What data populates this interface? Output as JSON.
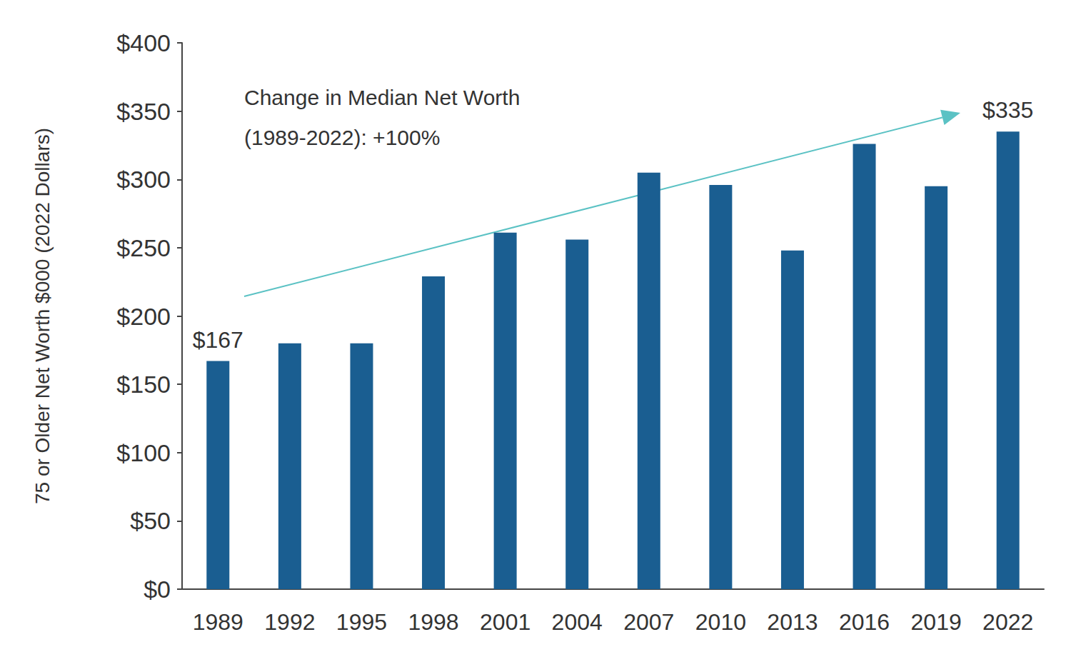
{
  "chart_data": {
    "type": "bar",
    "y_label": "75 or Older Net Worth $000 (2022 Dollars)",
    "annotations": [
      "Change in Median Net Worth\n(1989-2022): +100%"
    ],
    "categories": [
      "1989",
      "1992",
      "1995",
      "1998",
      "2001",
      "2004",
      "2007",
      "2010",
      "2013",
      "2016",
      "2019",
      "2022"
    ],
    "values": [
      167,
      180,
      180,
      229,
      261,
      256,
      305,
      296,
      248,
      326,
      295,
      335
    ],
    "value_labels": [
      "$167",
      null,
      null,
      null,
      null,
      null,
      null,
      null,
      null,
      null,
      null,
      "$335"
    ],
    "color": "#1a5e91",
    "ylim": [
      0,
      400
    ],
    "yticks": [
      {
        "value": 0,
        "label": "$0"
      },
      {
        "value": 50,
        "label": "$50"
      },
      {
        "value": 100,
        "label": "$100"
      },
      {
        "value": 150,
        "label": "$150"
      },
      {
        "value": 200,
        "label": "$200"
      },
      {
        "value": 250,
        "label": "$250"
      },
      {
        "value": 300,
        "label": "$300"
      },
      {
        "value": 350,
        "label": "$350"
      },
      {
        "value": 400,
        "label": "$400"
      }
    ],
    "grid": false
  }
}
